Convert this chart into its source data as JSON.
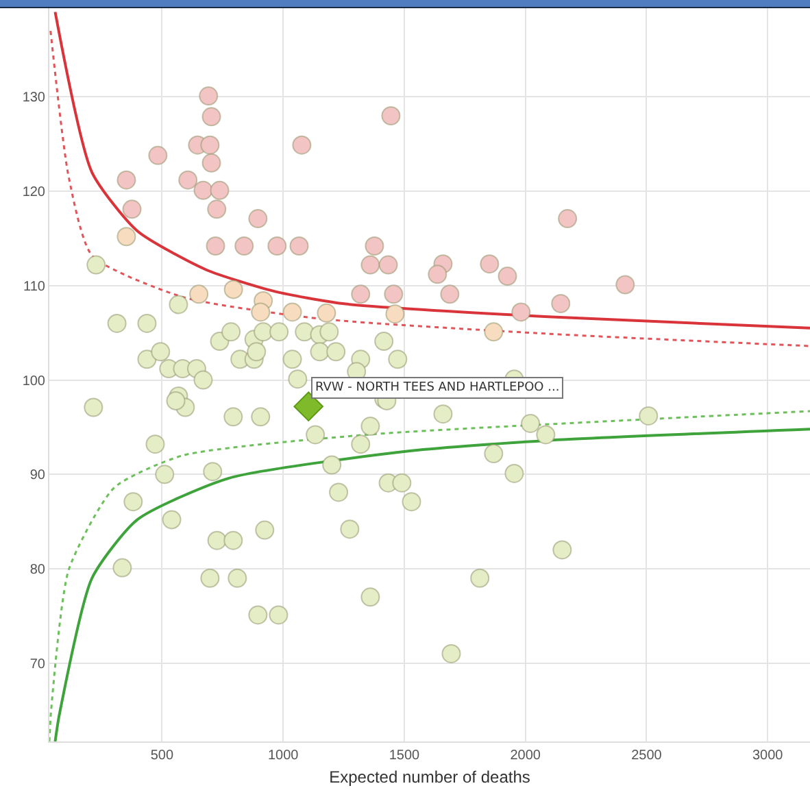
{
  "chart_data": {
    "type": "scatter",
    "xlabel": "Expected number of deaths",
    "xlim": [
      35,
      3175
    ],
    "ylim": [
      61.7,
      139.4
    ],
    "xticks": [
      500,
      1000,
      1500,
      2000,
      2500,
      3000
    ],
    "yticks": [
      70,
      80,
      90,
      100,
      110,
      120,
      130
    ],
    "grid": true,
    "marker": "circle",
    "annotations": [
      {
        "text": "RVW - NORTH TEES AND HARTLEPOO ...",
        "x": 1105,
        "y": 97.2
      }
    ],
    "series": [
      {
        "type": "line",
        "marker": "none",
        "line_style": "solid",
        "color": "#d9343a",
        "x": [
          59,
          211,
          398,
          681,
          964,
          1246,
          2095,
          3175
        ],
        "values": [
          139,
          122,
          115.8,
          111.7,
          109.4,
          108.1,
          106.7,
          105.5
        ]
      },
      {
        "type": "line",
        "marker": "none",
        "line_style": "dotted",
        "color": "#e0555a",
        "x": [
          40,
          115,
          211,
          585,
          1150,
          2095,
          3175
        ],
        "values": [
          137,
          121.5,
          113.2,
          108.8,
          106.5,
          104.9,
          103.6
        ]
      },
      {
        "type": "line",
        "marker": "none",
        "line_style": "solid",
        "color": "#3da33a",
        "x": [
          59,
          76,
          211,
          398,
          776,
          1530,
          2095,
          3175
        ],
        "values": [
          61.7,
          64.5,
          79.0,
          85.2,
          89.6,
          92.5,
          93.6,
          94.8
        ]
      },
      {
        "type": "line",
        "marker": "none",
        "line_style": "dotted",
        "color": "#6cc05a",
        "x": [
          35,
          42,
          115,
          303,
          585,
          1342,
          2547,
          3175
        ],
        "values": [
          61.7,
          64.9,
          79.9,
          88.6,
          92.0,
          94.2,
          95.9,
          96.7
        ]
      },
      {
        "color": "#f2c4c4",
        "x": [
          692,
          704,
          483,
          647,
          698,
          704,
          353,
          607,
          670,
          738,
          376,
          726,
          896,
          721,
          839,
          975,
          1066,
          1077,
          1445,
          1377,
          1360,
          1434,
          1320,
          1456,
          1660,
          1637,
          1688,
          1852,
          1926,
          2174,
          2412,
          2146,
          1982
        ],
        "values": [
          130.1,
          127.9,
          123.8,
          124.9,
          124.9,
          123.0,
          121.2,
          121.2,
          120.1,
          120.1,
          118.1,
          118.1,
          117.1,
          114.2,
          114.2,
          114.2,
          114.2,
          124.9,
          128.0,
          114.2,
          112.2,
          112.2,
          109.1,
          109.1,
          112.3,
          111.2,
          109.1,
          112.3,
          111.0,
          117.1,
          110.1,
          108.1,
          107.2
        ]
      },
      {
        "color": "#f8dcbf",
        "x": [
          353,
          652,
          795,
          918,
          907,
          1038,
          1179,
          1462,
          1869
        ],
        "values": [
          115.2,
          109.1,
          109.6,
          108.4,
          107.2,
          107.2,
          107.1,
          107.0,
          105.1
        ]
      },
      {
        "color": "#e4edc6",
        "x": [
          228,
          314,
          438,
          568,
          738,
          785,
          880,
          918,
          983,
          1088,
          1151,
          1190,
          438,
          494,
          528,
          585,
          643,
          670,
          822,
          880,
          890,
          1038,
          1060,
          1151,
          1218,
          1320,
          1416,
          1473,
          568,
          1416,
          1303,
          217,
          596,
          557,
          794,
          907,
          1133,
          1320,
          1360,
          1428,
          472,
          511,
          709,
          1201,
          1229,
          1434,
          1490,
          1530,
          381,
          540,
          1275,
          924,
          727,
          794,
          336,
          698,
          811,
          1360,
          896,
          981,
          1660,
          2021,
          2084,
          2508,
          1869,
          1954,
          2152,
          1812,
          1694,
          1954
        ],
        "values": [
          112.2,
          106.0,
          106.0,
          108.0,
          104.1,
          105.1,
          104.3,
          105.1,
          105.1,
          105.1,
          104.8,
          105.1,
          102.2,
          103.0,
          101.2,
          101.2,
          101.2,
          100.0,
          102.2,
          102.2,
          103.0,
          102.2,
          100.1,
          103.0,
          103.0,
          102.2,
          104.1,
          102.2,
          98.3,
          98.0,
          100.9,
          97.1,
          97.1,
          97.8,
          96.1,
          96.1,
          94.2,
          93.2,
          95.1,
          97.8,
          93.2,
          90.0,
          90.3,
          91.0,
          88.1,
          89.1,
          89.1,
          87.1,
          87.1,
          85.2,
          84.2,
          84.1,
          83.0,
          83.0,
          80.1,
          79.0,
          79.0,
          77.0,
          75.1,
          75.1,
          96.4,
          95.4,
          94.2,
          96.2,
          92.2,
          90.1,
          82.0,
          79.0,
          71.0,
          100.1
        ]
      },
      {
        "marker": "diamond",
        "color": "#7fba2a",
        "x": [
          1105
        ],
        "values": [
          97.2
        ]
      }
    ]
  }
}
